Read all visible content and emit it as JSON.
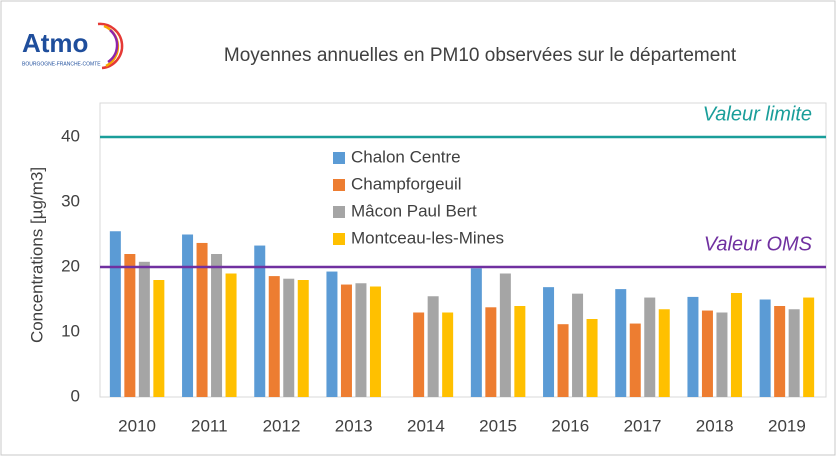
{
  "logo": {
    "name": "Atmo",
    "region": "BOURGOGNE-FRANCHE-COMTE"
  },
  "chart_data": {
    "type": "bar",
    "title": "Moyennes annuelles en PM10 observées sur le département",
    "y_label": "Concentrations [µg/m3]",
    "categories": [
      "2010",
      "2011",
      "2012",
      "2013",
      "2014",
      "2015",
      "2016",
      "2017",
      "2018",
      "2019"
    ],
    "series": [
      {
        "name": "Chalon Centre",
        "color": "#5b9bd5",
        "values": [
          25.5,
          25,
          23.3,
          19.3,
          null,
          19.8,
          16.9,
          16.6,
          15.4,
          15
        ]
      },
      {
        "name": "Champforgeuil",
        "color": "#ed7d31",
        "values": [
          22,
          23.7,
          18.6,
          17.3,
          13,
          13.8,
          11.2,
          11.3,
          13.3,
          14
        ]
      },
      {
        "name": "Mâcon Paul Bert",
        "color": "#a5a5a5",
        "values": [
          20.8,
          22,
          18.2,
          17.5,
          15.5,
          19,
          15.9,
          15.3,
          13,
          13.5
        ]
      },
      {
        "name": "Montceau-les-Mines",
        "color": "#ffc000",
        "values": [
          18,
          19,
          18,
          17,
          13,
          14,
          12,
          13.5,
          16,
          15.3
        ]
      }
    ],
    "ylim": [
      0,
      45
    ],
    "yticks": [
      0,
      10,
      20,
      30,
      40
    ],
    "grid": false,
    "legend": "top-center",
    "reference_lines": [
      {
        "value": 40,
        "label": "Valeur limite",
        "color": "#1a9e9a"
      },
      {
        "value": 20,
        "label": "Valeur OMS",
        "color": "#7030a0"
      }
    ]
  }
}
